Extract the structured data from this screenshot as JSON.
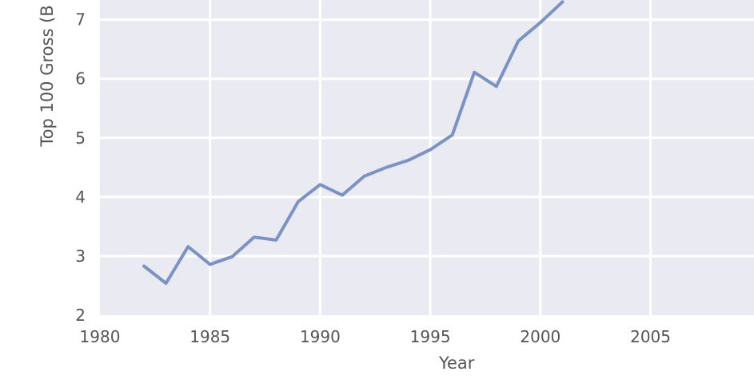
{
  "chart_data": {
    "type": "line",
    "xlabel": "Year",
    "ylabel": "Top 100 Gross (B",
    "xlim": [
      1980,
      2009.7
    ],
    "ylim": [
      2,
      7.4
    ],
    "xticks": [
      1980,
      1985,
      1990,
      1995,
      2000,
      2005
    ],
    "xtick_labels": [
      "1980",
      "1985",
      "1990",
      "1995",
      "2000",
      "2005"
    ],
    "yticks": [
      2,
      3,
      4,
      5,
      6,
      7
    ],
    "ytick_labels": [
      "2",
      "3",
      "4",
      "5",
      "6",
      "7"
    ],
    "grid": true,
    "colors": {
      "background": "#eaeaf2",
      "grid": "#ffffff",
      "line": "#7b93c4"
    },
    "series": [
      {
        "x": [
          1982,
          1983,
          1984,
          1985,
          1986,
          1987,
          1988,
          1989,
          1990,
          1991,
          1992,
          1993,
          1994,
          1995,
          1996,
          1997,
          1998,
          1999,
          2000,
          2001
        ],
        "values": [
          2.83,
          2.54,
          3.16,
          2.86,
          2.99,
          3.32,
          3.27,
          3.92,
          4.21,
          4.03,
          4.35,
          4.5,
          4.62,
          4.8,
          5.05,
          6.11,
          5.87,
          6.64,
          6.95,
          7.3
        ]
      }
    ]
  }
}
